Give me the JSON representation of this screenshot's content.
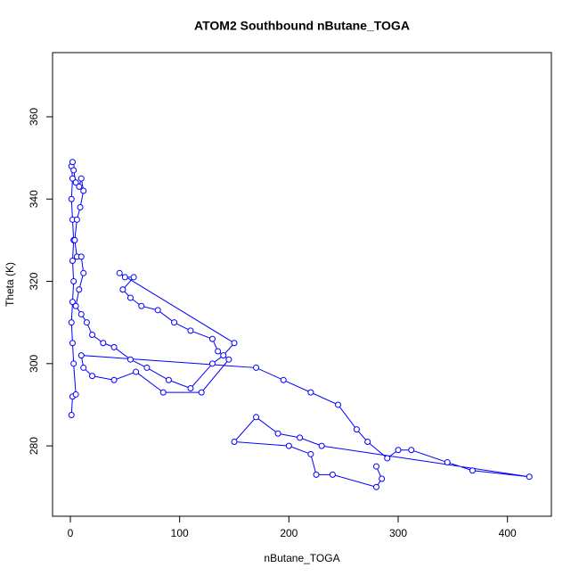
{
  "chart_data": {
    "type": "line",
    "title": "ATOM2 Southbound nButane_TOGA",
    "xlabel": "nButane_TOGA",
    "ylabel": "Theta (K)",
    "x": [
      1,
      2,
      5,
      3,
      2,
      1,
      2,
      3,
      2,
      3,
      2,
      1,
      2,
      1,
      2,
      3,
      5,
      8,
      10,
      12,
      9,
      6,
      4,
      6,
      10,
      12,
      8,
      5,
      10,
      15,
      20,
      30,
      40,
      55,
      70,
      90,
      110,
      130,
      140,
      150,
      45,
      50,
      58,
      48,
      55,
      65,
      80,
      95,
      110,
      130,
      135,
      145,
      120,
      85,
      60,
      40,
      20,
      12,
      10,
      170,
      195,
      220,
      245,
      262,
      272,
      290,
      300,
      312,
      345,
      368,
      420,
      230,
      210,
      190,
      170,
      150,
      200,
      220,
      225,
      240,
      280,
      285,
      280
    ],
    "series": [
      {
        "color": "#0000ff",
        "values": [
          287.5,
          292,
          292.5,
          300,
          305,
          310,
          315,
          320,
          325,
          330,
          335,
          340,
          345,
          348,
          349,
          347,
          344,
          343,
          345,
          342,
          338,
          335,
          330,
          326,
          326,
          322,
          318,
          314,
          312,
          310,
          307,
          305,
          304,
          301,
          299,
          296,
          294,
          300,
          302,
          305,
          322,
          321,
          321,
          318,
          316,
          314,
          313,
          310,
          308,
          306,
          303,
          301,
          293,
          293,
          298,
          296,
          297,
          299,
          302,
          299,
          296,
          293,
          290,
          284,
          281,
          277,
          279,
          279,
          276,
          274,
          272.5,
          280,
          282,
          283,
          287,
          281,
          280,
          278,
          273,
          273,
          270,
          272,
          275
        ]
      }
    ],
    "xlim": [
      -16.3,
      440.2
    ],
    "ylim": [
      262.9,
      375.6
    ],
    "xticks": [
      0,
      100,
      200,
      300,
      400
    ],
    "yticks": [
      280,
      300,
      320,
      340,
      360
    ]
  }
}
